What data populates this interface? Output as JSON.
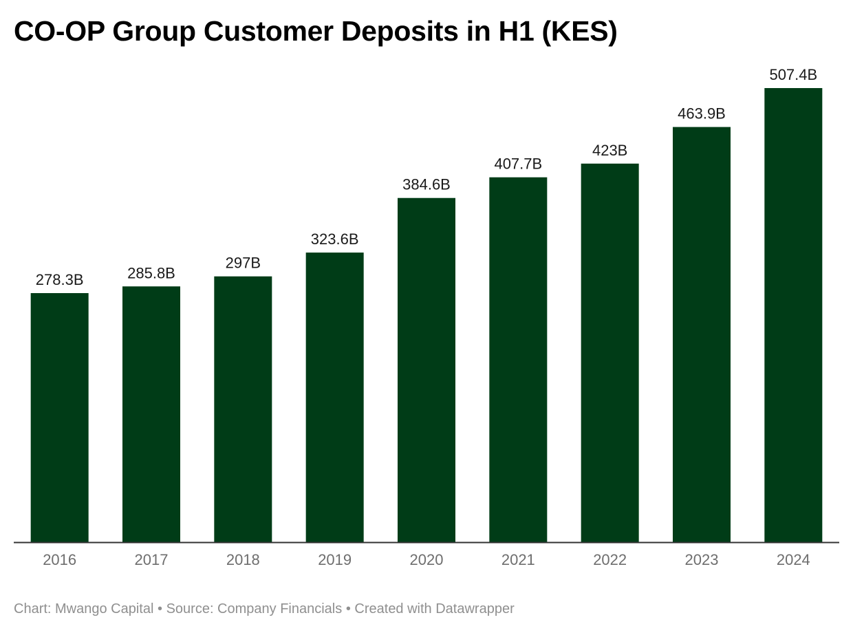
{
  "title": "CO-OP Group Customer Deposits in H1 (KES)",
  "footer": {
    "chart_credit": "Chart: Mwango Capital",
    "source": "Source: Company Financials",
    "created_with": "Created with Datawrapper",
    "separator": "•"
  },
  "colors": {
    "bar": "#003c17",
    "axis": "#333333",
    "value_label": "#1a1a1a",
    "tick_label": "#6e6e6e"
  },
  "chart_data": {
    "type": "bar",
    "title": "CO-OP Group Customer Deposits in H1 (KES)",
    "categories": [
      "2016",
      "2017",
      "2018",
      "2019",
      "2020",
      "2021",
      "2022",
      "2023",
      "2024"
    ],
    "values": [
      278.3,
      285.8,
      297,
      323.6,
      384.6,
      407.7,
      423,
      463.9,
      507.4
    ],
    "data_labels": [
      "278.3B",
      "285.8B",
      "297B",
      "323.6B",
      "384.6B",
      "407.7B",
      "423B",
      "463.9B",
      "507.4B"
    ],
    "unit": "B",
    "xlabel": "",
    "ylabel": "",
    "ylim": [
      0,
      507.4
    ],
    "grid": false,
    "legend": "none"
  }
}
